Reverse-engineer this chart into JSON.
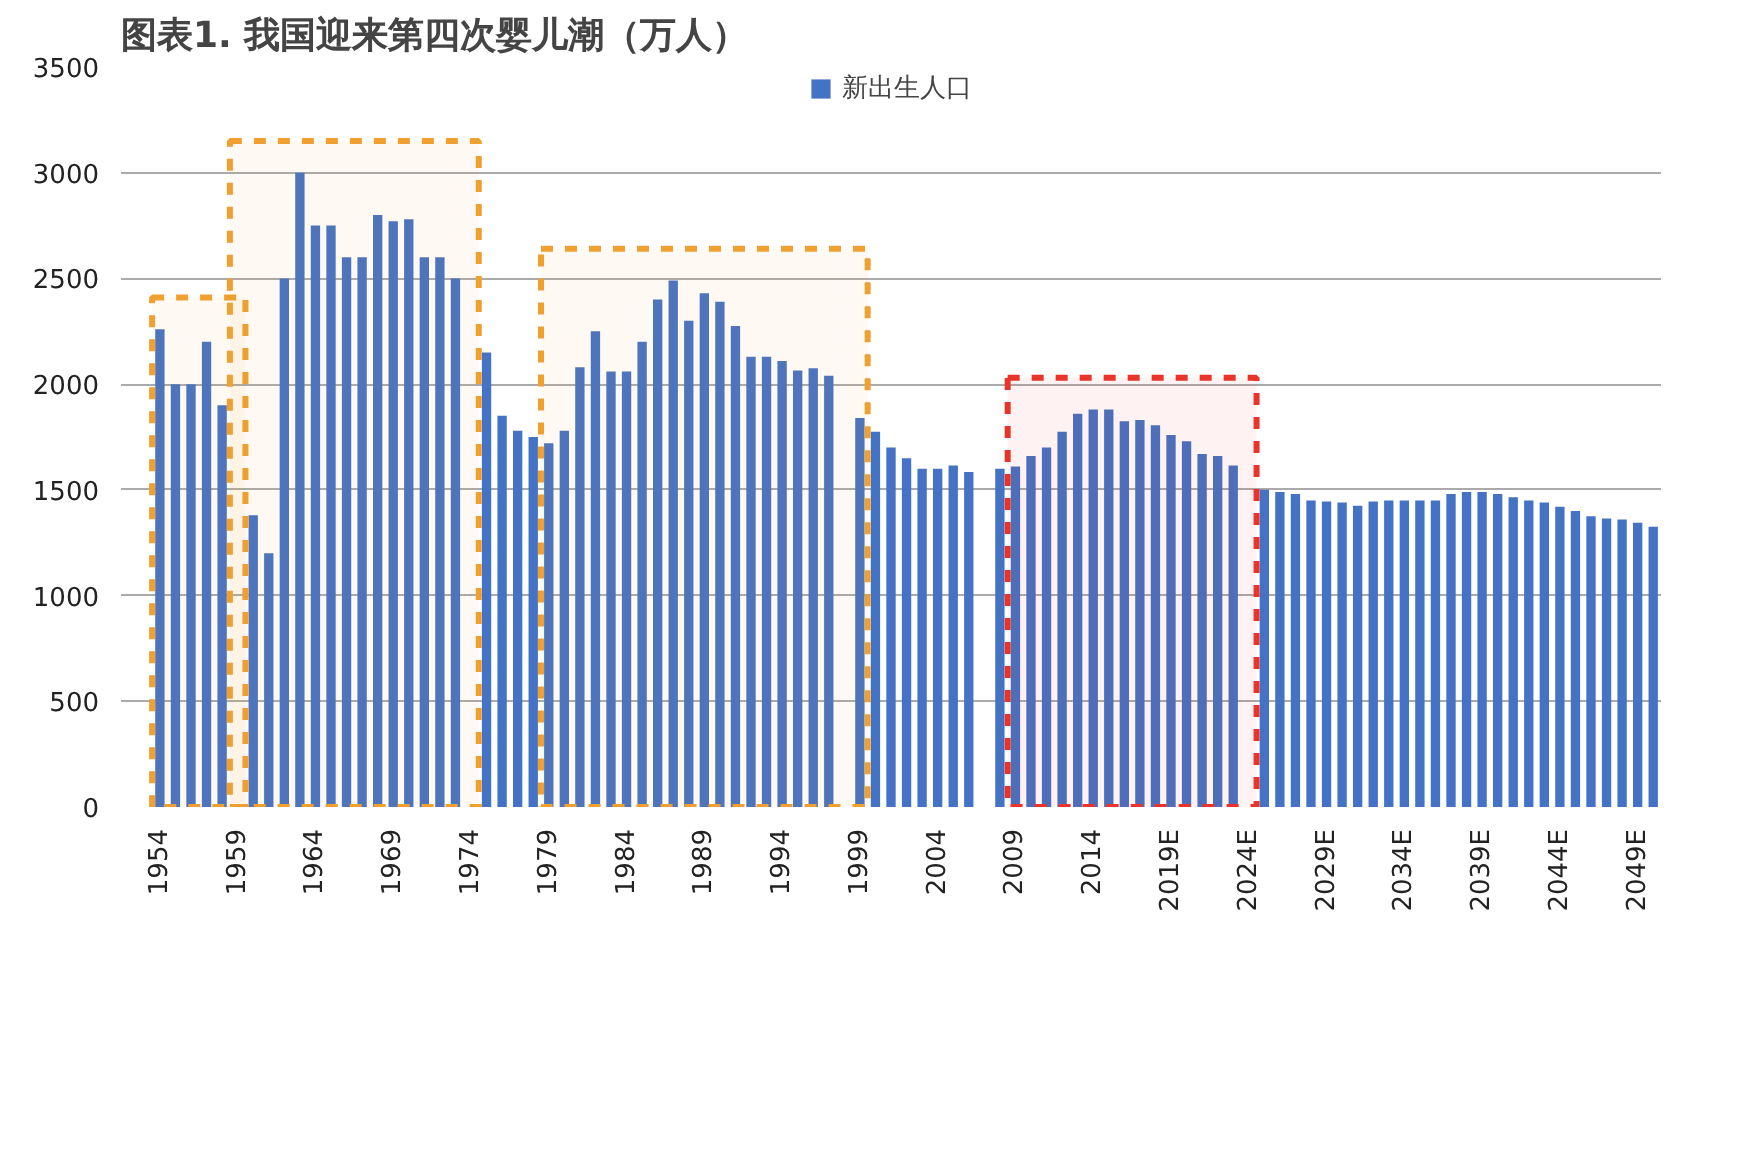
{
  "chart_data": {
    "type": "bar",
    "title": "图表1.    我国迎来第四次婴儿潮（万人）",
    "categories": [
      "1954",
      null,
      null,
      null,
      null,
      "1959",
      null,
      null,
      null,
      null,
      "1964",
      null,
      null,
      null,
      null,
      "1969",
      null,
      null,
      null,
      null,
      "1974",
      null,
      null,
      null,
      null,
      "1979",
      null,
      null,
      null,
      null,
      "1984",
      null,
      null,
      null,
      null,
      "1989",
      null,
      null,
      null,
      null,
      "1994",
      null,
      null,
      null,
      null,
      "1999",
      null,
      null,
      null,
      null,
      "2004",
      null,
      null,
      null,
      null,
      "2009",
      null,
      null,
      null,
      null,
      "2014",
      null,
      null,
      null,
      null,
      "2019E",
      null,
      null,
      null,
      null,
      "2024E",
      null,
      null,
      null,
      null,
      "2029E",
      null,
      null,
      null,
      null,
      "2034E",
      null,
      null,
      null,
      null,
      "2039E",
      null,
      null,
      null,
      null,
      "2044E",
      null,
      null,
      null,
      null,
      "2049E",
      null
    ],
    "series": [
      {
        "name": "新出生人口",
        "color": "#4472c4",
        "values": [
          2260,
          2000,
          2000,
          2200,
          1900,
          null,
          1380,
          1200,
          2500,
          3000,
          2750,
          2750,
          2600,
          2600,
          2800,
          2770,
          2780,
          2600,
          2600,
          2500,
          null,
          2150,
          1850,
          1780,
          1750,
          1720,
          1780,
          2080,
          2250,
          2060,
          2060,
          2200,
          2400,
          2490,
          2300,
          2430,
          2390,
          2275,
          2130,
          2130,
          2110,
          2065,
          2075,
          2040,
          null,
          1840,
          1775,
          1700,
          1650,
          1600,
          1600,
          1615,
          1585,
          null,
          1600,
          1610,
          1660,
          1700,
          1775,
          1860,
          1880,
          1880,
          1825,
          1830,
          1805,
          1760,
          1730,
          1670,
          1660,
          1615,
          null,
          1500,
          1490,
          1480,
          1450,
          1445,
          1440,
          1425,
          1445,
          1450,
          1450,
          1450,
          1450,
          1480,
          1490,
          1490,
          1480,
          1465,
          1450,
          1440,
          1420,
          1400,
          1375,
          1365,
          1360,
          1345,
          1325
        ]
      }
    ],
    "ylim": [
      0,
      3500
    ],
    "yticks": [
      0,
      500,
      1000,
      1500,
      2000,
      2500,
      3000,
      3500
    ],
    "grid": "y",
    "legend": "top",
    "bands": [
      {
        "axis": "x",
        "from": "1954",
        "to": "1959",
        "color": "#f0a030"
      },
      {
        "axis": "x",
        "from": "1959",
        "to": "1974",
        "color": "#f0a030"
      },
      {
        "axis": "x",
        "from": "1979",
        "to": "1999",
        "color": "#f0a030"
      },
      {
        "axis": "x",
        "from": "2009",
        "to": "2024E",
        "color": "#e8342a"
      }
    ]
  }
}
